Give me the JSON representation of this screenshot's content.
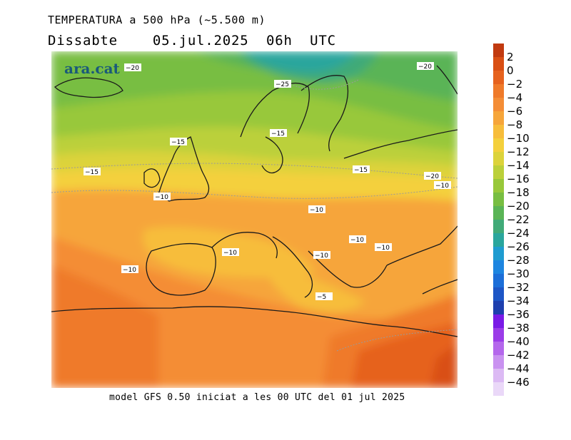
{
  "title": "TEMPERATURA a 500 hPa (~5.500 m)",
  "subtitle": "Dissabte    05.jul.2025  06h  UTC",
  "logo": "ara.cat",
  "footer": "model GFS 0.50 iniciat a les 00 UTC del 01 jul 2025",
  "colorbar": {
    "levels": [
      {
        "label": "2",
        "color": "#c13a10"
      },
      {
        "label": "0",
        "color": "#d94f14"
      },
      {
        "label": "−2",
        "color": "#e6621e"
      },
      {
        "label": "−4",
        "color": "#ef7a2a"
      },
      {
        "label": "−6",
        "color": "#f48d36"
      },
      {
        "label": "−8",
        "color": "#f6a53a"
      },
      {
        "label": "−10",
        "color": "#f7bd3b"
      },
      {
        "label": "−12",
        "color": "#f4d03c"
      },
      {
        "label": "−14",
        "color": "#dcd33b"
      },
      {
        "label": "−16",
        "color": "#bbd03a"
      },
      {
        "label": "−18",
        "color": "#98c83a"
      },
      {
        "label": "−20",
        "color": "#78be42"
      },
      {
        "label": "−22",
        "color": "#5ab456"
      },
      {
        "label": "−24",
        "color": "#41aa78"
      },
      {
        "label": "−26",
        "color": "#2aa69d"
      },
      {
        "label": "−28",
        "color": "#1f9cd0"
      },
      {
        "label": "−30",
        "color": "#1d85e0"
      },
      {
        "label": "−32",
        "color": "#1c6ed8"
      },
      {
        "label": "−34",
        "color": "#1d56c6"
      },
      {
        "label": "−36",
        "color": "#1e3fae"
      },
      {
        "label": "−38",
        "color": "#7a1ae6"
      },
      {
        "label": "−40",
        "color": "#9b3ce8"
      },
      {
        "label": "−42",
        "color": "#b467ec"
      },
      {
        "label": "−44",
        "color": "#c992f0"
      },
      {
        "label": "−46",
        "color": "#dcbaf4"
      }
    ],
    "bottom_color": "#ead8f8"
  },
  "contour_labels": [
    "−20",
    "−25",
    "−15",
    "−15",
    "−20",
    "−15",
    "−15",
    "−20",
    "−10",
    "−10",
    "−10",
    "−10",
    "−10",
    "−10",
    "−10",
    "−10",
    "−5"
  ]
}
